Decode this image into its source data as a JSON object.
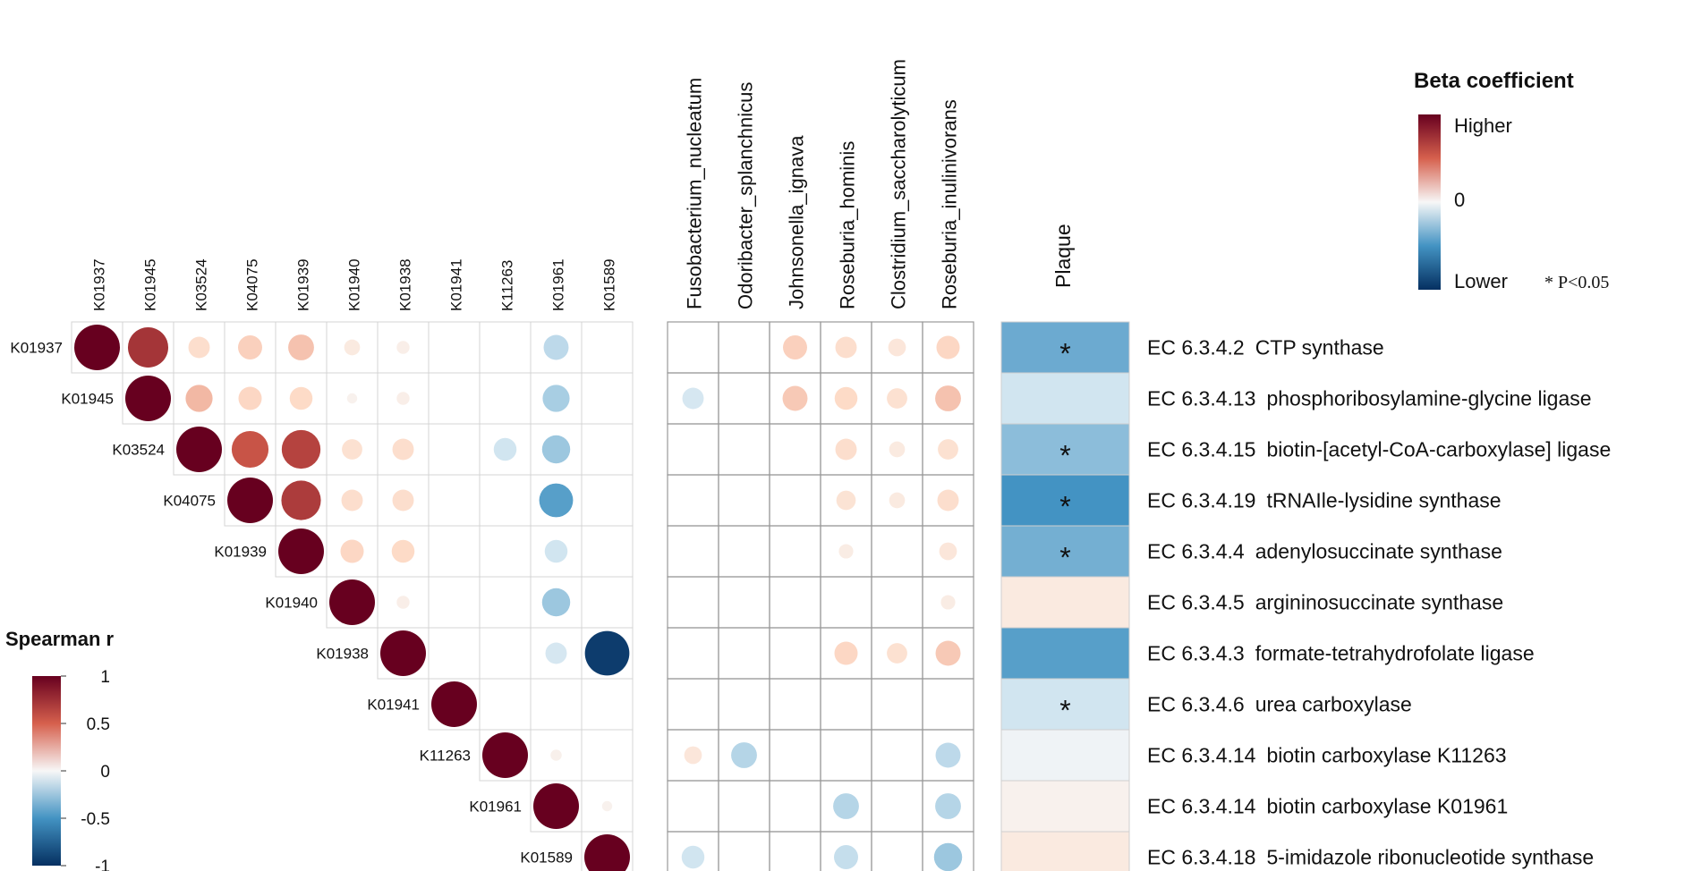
{
  "chart_data": {
    "type": "heatmap",
    "correlation_matrix": {
      "title": "Spearman r",
      "legend_ticks": [
        "1",
        "0.5",
        "0",
        "-0.5",
        "-1"
      ],
      "legend_range": [
        -1,
        1
      ],
      "labels": [
        "K01937",
        "K01945",
        "K03524",
        "K04075",
        "K01939",
        "K01940",
        "K01938",
        "K01941",
        "K11263",
        "K01961",
        "K01589"
      ],
      "values": [
        [
          1,
          0.78,
          0.22,
          0.28,
          0.32,
          0.12,
          0.08,
          null,
          null,
          -0.3,
          null
        ],
        [
          null,
          1,
          0.35,
          0.26,
          0.25,
          0.05,
          0.08,
          null,
          null,
          -0.35,
          null
        ],
        [
          null,
          null,
          1,
          0.65,
          0.72,
          0.2,
          0.22,
          null,
          -0.25,
          -0.38,
          null
        ],
        [
          null,
          null,
          null,
          1,
          0.75,
          0.22,
          0.22,
          null,
          null,
          -0.55,
          null
        ],
        [
          null,
          null,
          null,
          null,
          1,
          0.26,
          0.25,
          null,
          null,
          -0.25,
          null
        ],
        [
          null,
          null,
          null,
          null,
          null,
          1,
          0.08,
          null,
          null,
          -0.38,
          null
        ],
        [
          null,
          null,
          null,
          null,
          null,
          null,
          1,
          null,
          null,
          -0.22,
          -0.95
        ],
        [
          null,
          null,
          null,
          null,
          null,
          null,
          null,
          1,
          null,
          null,
          null
        ],
        [
          null,
          null,
          null,
          null,
          null,
          null,
          null,
          null,
          1,
          0.06,
          null
        ],
        [
          null,
          null,
          null,
          null,
          null,
          null,
          null,
          null,
          null,
          1,
          0.05
        ],
        [
          null,
          null,
          null,
          null,
          null,
          null,
          null,
          null,
          null,
          null,
          1
        ]
      ]
    },
    "species_matrix": {
      "columns": [
        "Fusobacterium_nucleatum",
        "Odoribacter_splanchnicus",
        "Johnsonella_ignava",
        "Roseburia_hominis",
        "Clostridium_saccharolyticum",
        "Roseburia_inulinivorans"
      ],
      "values": [
        [
          null,
          null,
          0.28,
          0.22,
          0.15,
          0.26
        ],
        [
          -0.22,
          null,
          0.3,
          0.25,
          0.2,
          0.32
        ],
        [
          null,
          null,
          null,
          0.22,
          0.12,
          0.2
        ],
        [
          null,
          null,
          null,
          0.18,
          0.12,
          0.22
        ],
        [
          null,
          null,
          null,
          0.1,
          null,
          0.15
        ],
        [
          null,
          null,
          null,
          null,
          null,
          0.1
        ],
        [
          null,
          null,
          null,
          0.26,
          0.2,
          0.3
        ],
        [
          null,
          null,
          null,
          null,
          null,
          null
        ],
        [
          0.15,
          -0.32,
          null,
          null,
          null,
          -0.3
        ],
        [
          null,
          null,
          null,
          -0.32,
          null,
          -0.32
        ],
        [
          -0.25,
          null,
          null,
          -0.28,
          null,
          -0.38
        ]
      ]
    },
    "plaque": {
      "column_label": "Plaque",
      "beta": [
        -0.5,
        -0.25,
        -0.42,
        -0.6,
        -0.48,
        0.12,
        -0.55,
        -0.25,
        -0.05,
        0.05,
        0.12
      ],
      "significant": [
        true,
        false,
        true,
        true,
        true,
        false,
        false,
        true,
        false,
        false,
        false
      ],
      "star_symbol": "*"
    },
    "enzymes": [
      {
        "ec": "EC 6.3.4.2",
        "name": "CTP synthase"
      },
      {
        "ec": "EC 6.3.4.13",
        "name": "phosphoribosylamine-glycine ligase"
      },
      {
        "ec": "EC 6.3.4.15",
        "name": "biotin-[acetyl-CoA-carboxylase] ligase"
      },
      {
        "ec": "EC 6.3.4.19",
        "name": "tRNAIle-lysidine synthase"
      },
      {
        "ec": "EC 6.3.4.4",
        "name": "adenylosuccinate synthase"
      },
      {
        "ec": "EC 6.3.4.5",
        "name": "argininosuccinate synthase"
      },
      {
        "ec": "EC 6.3.4.3",
        "name": "formate-tetrahydrofolate ligase"
      },
      {
        "ec": "EC 6.3.4.6",
        "name": "urea carboxylase"
      },
      {
        "ec": "EC 6.3.4.14",
        "name": "biotin carboxylase K11263"
      },
      {
        "ec": "EC 6.3.4.14",
        "name": "biotin carboxylase K01961"
      },
      {
        "ec": "EC 6.3.4.18",
        "name": "5-imidazole ribonucleotide synthase"
      }
    ],
    "beta_legend": {
      "title": "Beta coefficient",
      "higher": "Higher",
      "zero": "0",
      "lower": "Lower",
      "note": "* P<0.05"
    },
    "colors": {
      "high": "#67001f",
      "mid_high": "#d6604d",
      "light_high": "#fddbc7",
      "neutral": "#f7f7f7",
      "light_low": "#d1e5f0",
      "mid_low": "#4393c3",
      "low": "#053061"
    }
  }
}
